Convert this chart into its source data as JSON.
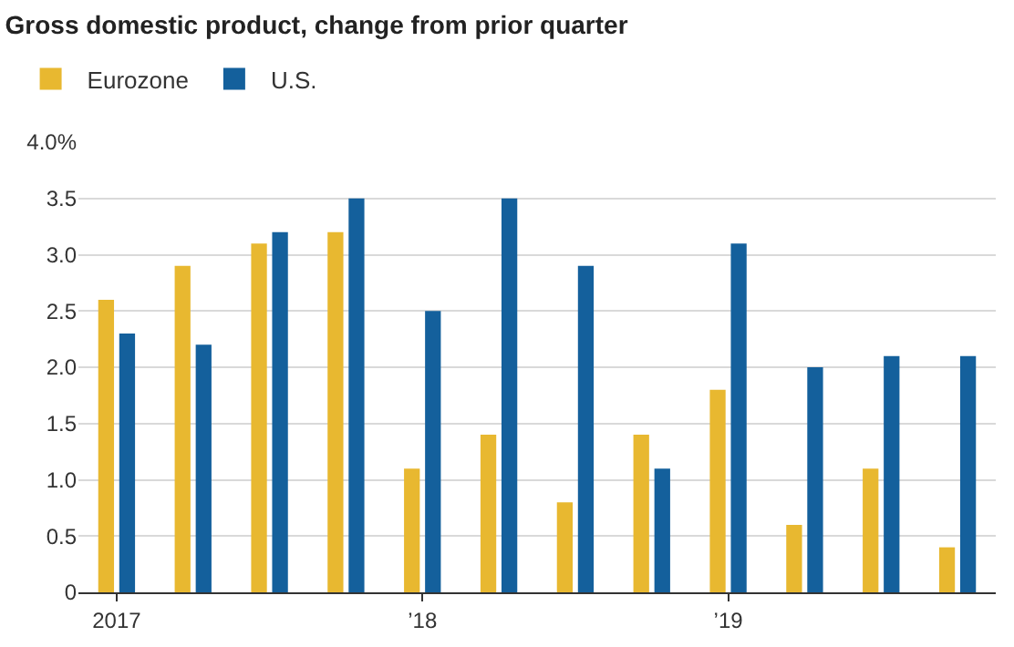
{
  "chart_data": {
    "type": "bar",
    "title": "Gross domestic product, change from prior quarter",
    "categories": [
      "2017",
      null,
      null,
      null,
      "’18",
      null,
      null,
      null,
      "’19",
      null,
      null,
      null
    ],
    "series": [
      {
        "name": "Eurozone",
        "color": "#e8b830",
        "values": [
          2.6,
          2.9,
          3.1,
          3.2,
          1.1,
          1.4,
          0.8,
          1.4,
          1.8,
          0.6,
          1.1,
          0.4
        ]
      },
      {
        "name": "U.S.",
        "color": "#14609c",
        "values": [
          2.3,
          2.2,
          3.2,
          3.5,
          2.5,
          3.5,
          2.9,
          1.1,
          3.1,
          2.0,
          2.1,
          2.1
        ]
      }
    ],
    "ylim": [
      0,
      4.0
    ],
    "yticks": [
      0,
      0.5,
      {
        "value": 1,
        "label": "1.0"
      },
      1.5,
      {
        "value": 2,
        "label": "2.0"
      },
      2.5,
      {
        "value": 3,
        "label": "3.0"
      },
      3.5,
      {
        "value": 4,
        "label": "4.0%"
      }
    ],
    "grid": "y",
    "legend": "top left"
  }
}
